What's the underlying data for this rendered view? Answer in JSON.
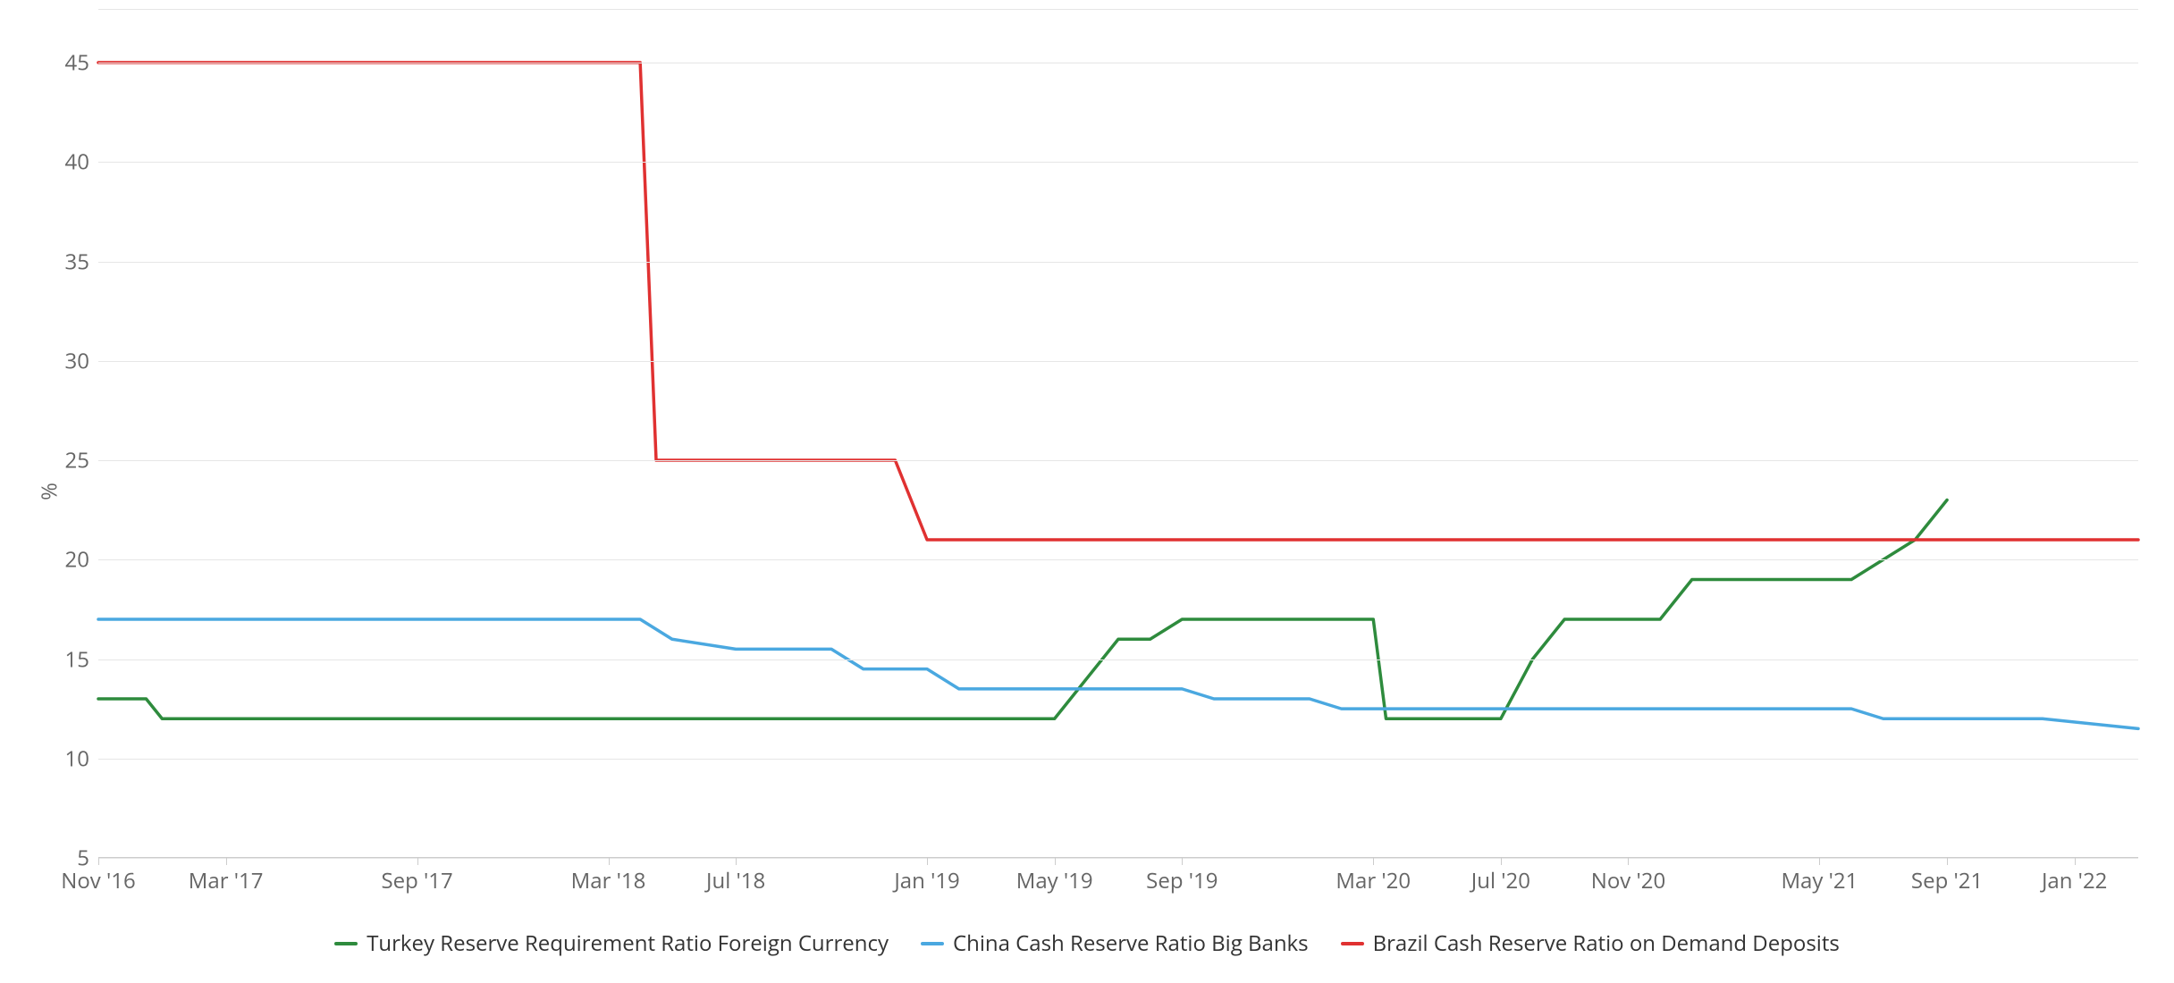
{
  "chart": {
    "type": "line",
    "background_color": "#ffffff",
    "grid_color": "#e6e6e6",
    "axis_color": "#cccccc",
    "tick_label_color": "#666666",
    "tick_fontsize": 24,
    "legend_fontsize": 24,
    "line_width": 3.5,
    "y_axis": {
      "title": "%",
      "min": 5,
      "max": 45,
      "tick_step": 5,
      "ticks": [
        5,
        10,
        15,
        20,
        25,
        30,
        35,
        40,
        45
      ]
    },
    "x_axis": {
      "min": 2016.8333,
      "max": 2022.1667,
      "labels": [
        {
          "value": 2016.8333,
          "text": "Nov '16"
        },
        {
          "value": 2017.1667,
          "text": "Mar '17"
        },
        {
          "value": 2017.6667,
          "text": "Sep '17"
        },
        {
          "value": 2018.1667,
          "text": "Mar '18"
        },
        {
          "value": 2018.5,
          "text": "Jul '18"
        },
        {
          "value": 2019.0,
          "text": "Jan '19"
        },
        {
          "value": 2019.3333,
          "text": "May '19"
        },
        {
          "value": 2019.6667,
          "text": "Sep '19"
        },
        {
          "value": 2020.1667,
          "text": "Mar '20"
        },
        {
          "value": 2020.5,
          "text": "Jul '20"
        },
        {
          "value": 2020.8333,
          "text": "Nov '20"
        },
        {
          "value": 2021.3333,
          "text": "May '21"
        },
        {
          "value": 2021.6667,
          "text": "Sep '21"
        },
        {
          "value": 2022.0,
          "text": "Jan '22"
        }
      ]
    },
    "series": [
      {
        "name": "Turkey Reserve Requirement Ratio Foreign Currency",
        "color": "#2e8b3d",
        "points": [
          {
            "x": 2016.8333,
            "y": 13.0
          },
          {
            "x": 2016.9583,
            "y": 13.0
          },
          {
            "x": 2017.0,
            "y": 12.0
          },
          {
            "x": 2019.3333,
            "y": 12.0
          },
          {
            "x": 2019.5,
            "y": 16.0
          },
          {
            "x": 2019.5833,
            "y": 16.0
          },
          {
            "x": 2019.6667,
            "y": 17.0
          },
          {
            "x": 2020.1667,
            "y": 17.0
          },
          {
            "x": 2020.2,
            "y": 12.0
          },
          {
            "x": 2020.5,
            "y": 12.0
          },
          {
            "x": 2020.5833,
            "y": 15.0
          },
          {
            "x": 2020.6667,
            "y": 17.0
          },
          {
            "x": 2020.9167,
            "y": 17.0
          },
          {
            "x": 2021.0,
            "y": 19.0
          },
          {
            "x": 2021.4167,
            "y": 19.0
          },
          {
            "x": 2021.5833,
            "y": 21.0
          },
          {
            "x": 2021.6667,
            "y": 23.0
          }
        ]
      },
      {
        "name": "China Cash Reserve Ratio Big Banks",
        "color": "#4aa8e0",
        "points": [
          {
            "x": 2016.8333,
            "y": 17.0
          },
          {
            "x": 2018.25,
            "y": 17.0
          },
          {
            "x": 2018.3333,
            "y": 16.0
          },
          {
            "x": 2018.5,
            "y": 15.5
          },
          {
            "x": 2018.75,
            "y": 15.5
          },
          {
            "x": 2018.8333,
            "y": 14.5
          },
          {
            "x": 2019.0,
            "y": 14.5
          },
          {
            "x": 2019.0833,
            "y": 13.5
          },
          {
            "x": 2019.6667,
            "y": 13.5
          },
          {
            "x": 2019.75,
            "y": 13.0
          },
          {
            "x": 2020.0,
            "y": 13.0
          },
          {
            "x": 2020.0833,
            "y": 12.5
          },
          {
            "x": 2021.4167,
            "y": 12.5
          },
          {
            "x": 2021.5,
            "y": 12.0
          },
          {
            "x": 2021.9167,
            "y": 12.0
          },
          {
            "x": 2022.1667,
            "y": 11.5
          }
        ]
      },
      {
        "name": "Brazil Cash Reserve Ratio on Demand Deposits",
        "color": "#e03131",
        "points": [
          {
            "x": 2016.8333,
            "y": 45.0
          },
          {
            "x": 2018.25,
            "y": 45.0
          },
          {
            "x": 2018.2917,
            "y": 25.0
          },
          {
            "x": 2018.9167,
            "y": 25.0
          },
          {
            "x": 2019.0,
            "y": 21.0
          },
          {
            "x": 2022.1667,
            "y": 21.0
          }
        ]
      }
    ]
  }
}
